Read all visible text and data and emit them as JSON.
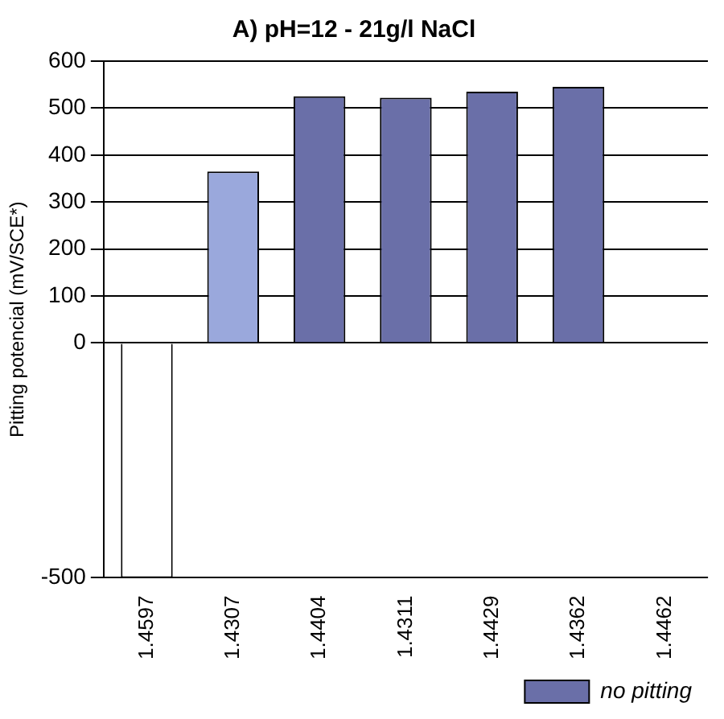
{
  "chart_data": {
    "type": "bar",
    "title": "A) pH=12 - 21g/l NaCl",
    "ylabel": "Pitting potencial (mV/SCE*)",
    "categories": [
      "1.4597",
      "1.4307",
      "1.4404",
      "1.4311",
      "1.4429",
      "1.4362",
      "1.4462"
    ],
    "series": [
      {
        "colors": [
          "#ffffff",
          "#9aa8dc",
          "#9aa8dc",
          "#9aa8dc",
          "#9aa8dc",
          "#9aa8dc",
          "#9aa8dc"
        ],
        "values": [
          -500,
          365,
          null,
          null,
          null,
          null,
          null
        ]
      },
      {
        "name": "no pitting",
        "color": "#6a6fa8",
        "values": [
          null,
          null,
          525,
          522,
          535,
          545,
          null
        ]
      }
    ],
    "ylim": [
      -500,
      600
    ],
    "yticks": [
      -500,
      0,
      100,
      200,
      300,
      400,
      500,
      600
    ],
    "grid": "y",
    "legend": "bottom right"
  }
}
